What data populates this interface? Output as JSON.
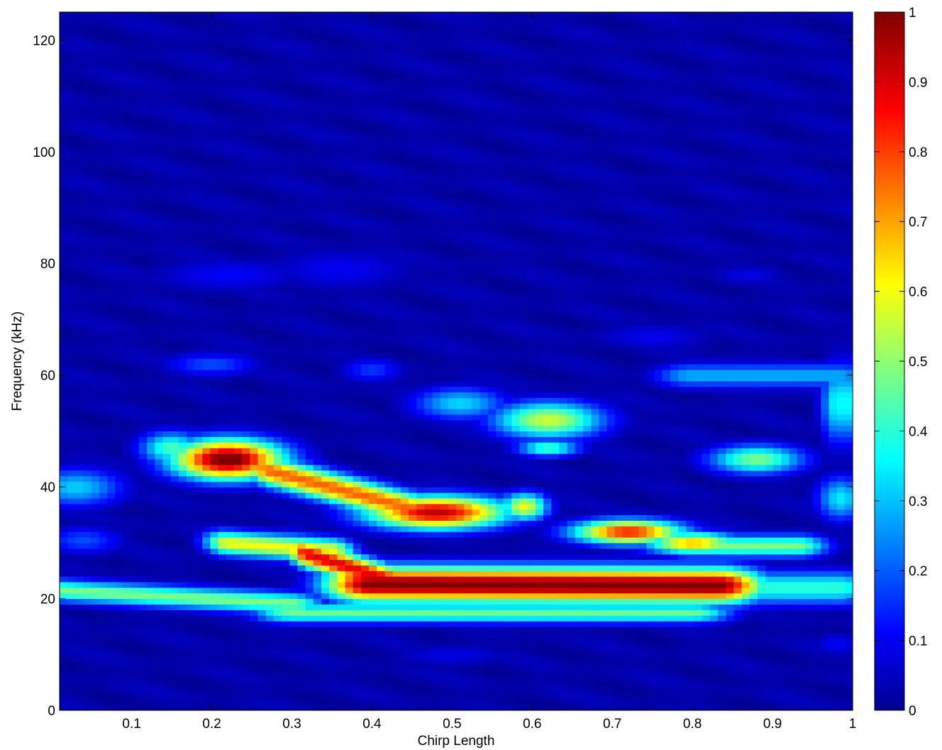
{
  "chart_data": {
    "type": "heatmap",
    "title": "",
    "xlabel": "Chirp Length",
    "ylabel": "Frequency (kHz)",
    "xlim": [
      0.01,
      1.0
    ],
    "ylim": [
      0,
      125
    ],
    "x_ticks": [
      "0.1",
      "0.2",
      "0.3",
      "0.4",
      "0.5",
      "0.6",
      "0.7",
      "0.8",
      "0.9",
      "1"
    ],
    "x_tick_values": [
      0.1,
      0.2,
      0.3,
      0.4,
      0.5,
      0.6,
      0.7,
      0.8,
      0.9,
      1.0
    ],
    "y_ticks": [
      "0",
      "20",
      "40",
      "60",
      "80",
      "100",
      "120"
    ],
    "y_tick_values": [
      0,
      20,
      40,
      60,
      80,
      100,
      120
    ],
    "colormap": "jet",
    "colorbar": {
      "range": [
        0,
        1
      ],
      "ticks": [
        "0",
        "0.1",
        "0.2",
        "0.3",
        "0.4",
        "0.5",
        "0.6",
        "0.7",
        "0.8",
        "0.9",
        "1"
      ],
      "tick_values": [
        0,
        0.1,
        0.2,
        0.3,
        0.4,
        0.5,
        0.6,
        0.7,
        0.8,
        0.9,
        1.0
      ]
    },
    "hotspots": [
      {
        "x": 0.21,
        "y": 45,
        "value": 1.0
      },
      {
        "x": 0.34,
        "y": 41,
        "value": 0.78
      },
      {
        "x": 0.47,
        "y": 35.5,
        "value": 0.95
      },
      {
        "x": 0.32,
        "y": 28,
        "value": 0.88
      },
      {
        "x": 0.52,
        "y": 22,
        "value": 1.0
      },
      {
        "x": 0.72,
        "y": 22,
        "value": 1.0
      },
      {
        "x": 0.72,
        "y": 32,
        "value": 0.85
      },
      {
        "x": 0.8,
        "y": 30,
        "value": 0.7
      },
      {
        "x": 0.62,
        "y": 52,
        "value": 0.58
      },
      {
        "x": 0.88,
        "y": 45,
        "value": 0.5
      },
      {
        "x": 0.05,
        "y": 22,
        "value": 0.5
      },
      {
        "x": 0.03,
        "y": 40,
        "value": 0.35
      },
      {
        "x": 0.98,
        "y": 38,
        "value": 0.35
      },
      {
        "x": 0.9,
        "y": 60,
        "value": 0.3
      },
      {
        "x": 0.2,
        "y": 62,
        "value": 0.2
      },
      {
        "x": 0.4,
        "y": 61,
        "value": 0.2
      }
    ]
  }
}
